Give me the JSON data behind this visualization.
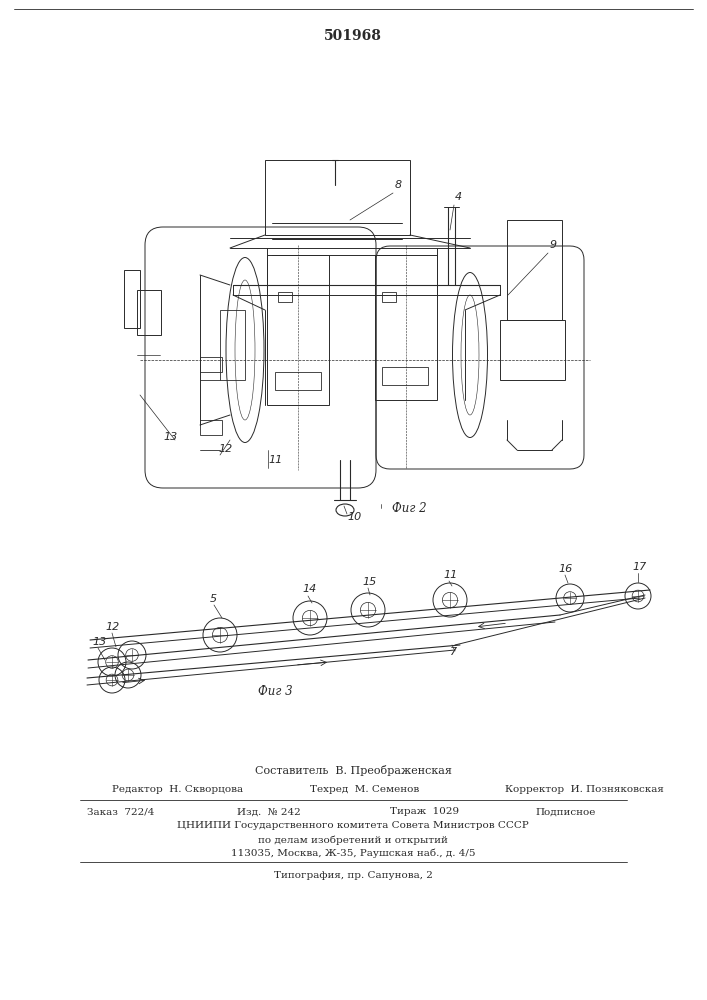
{
  "patent_number": "501968",
  "bg_color": "#ffffff",
  "line_color": "#2a2a2a",
  "fig2_label": "Фиг 2",
  "fig3_label": "Фиг 3",
  "footer": {
    "composer": "Составитель  В. Преображенская",
    "editor": "Редактор  Н. Скворцова",
    "tekhred": "Техред  М. Семенов",
    "corrector": "Корректор  И. Позняковская",
    "order": "Заказ  722/4",
    "izd": "Изд.  № 242",
    "tirazh": "Тираж  1029",
    "podpisnoe": "Подписное",
    "cniip": "ЦНИИПИ Государственного комитета Совета Министров СССР",
    "po_delam": "по делам изобретений и открытий",
    "address": "113035, Москва, Ж-35, Раушская наб., д. 4/5",
    "tipografia": "Типография, пр. Сапунова, 2"
  }
}
